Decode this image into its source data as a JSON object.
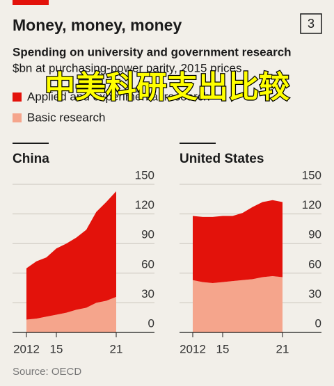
{
  "title": "Money, money, money",
  "badge": "3",
  "subtitle": "Spending on university and government research",
  "units": "$bn at purchasing-power parity, 2015 prices",
  "overlay": "中美科研支出比较",
  "source": "Source: OECD",
  "chart_data": [
    {
      "type": "area",
      "title": "China",
      "x": [
        2012,
        2013,
        2014,
        2015,
        2016,
        2017,
        2018,
        2019,
        2020,
        2021
      ],
      "xlim": [
        2012,
        2021
      ],
      "xticks": [
        {
          "value": 2012,
          "label": "2012"
        },
        {
          "value": 2015,
          "label": "15"
        },
        {
          "value": 2021,
          "label": "21"
        }
      ],
      "ylim": [
        0,
        150
      ],
      "yticks": [
        0,
        30,
        60,
        90,
        120,
        150
      ],
      "grid": true,
      "stacked": true,
      "series": [
        {
          "name": "Basic research",
          "color": "#f5a58c",
          "values": [
            13,
            14,
            16,
            18,
            20,
            23,
            25,
            30,
            32,
            36
          ]
        },
        {
          "name": "Applied and experimental research",
          "color": "#e3120b",
          "values": [
            52,
            58,
            60,
            67,
            70,
            73,
            79,
            92,
            100,
            107
          ]
        }
      ]
    },
    {
      "type": "area",
      "title": "United States",
      "x": [
        2012,
        2013,
        2014,
        2015,
        2016,
        2017,
        2018,
        2019,
        2020,
        2021
      ],
      "xlim": [
        2012,
        2021
      ],
      "xticks": [
        {
          "value": 2012,
          "label": "2012"
        },
        {
          "value": 2015,
          "label": "15"
        },
        {
          "value": 2021,
          "label": "21"
        }
      ],
      "ylim": [
        0,
        150
      ],
      "yticks": [
        0,
        30,
        60,
        90,
        120,
        150
      ],
      "grid": true,
      "stacked": true,
      "series": [
        {
          "color": "#f5a58c",
          "values": [
            53,
            51,
            50,
            51,
            52,
            53,
            54,
            56,
            57,
            56
          ]
        },
        {
          "color": "#e3120b",
          "values": [
            65,
            66,
            67,
            67,
            66,
            68,
            73,
            76,
            77,
            76
          ]
        }
      ]
    }
  ]
}
